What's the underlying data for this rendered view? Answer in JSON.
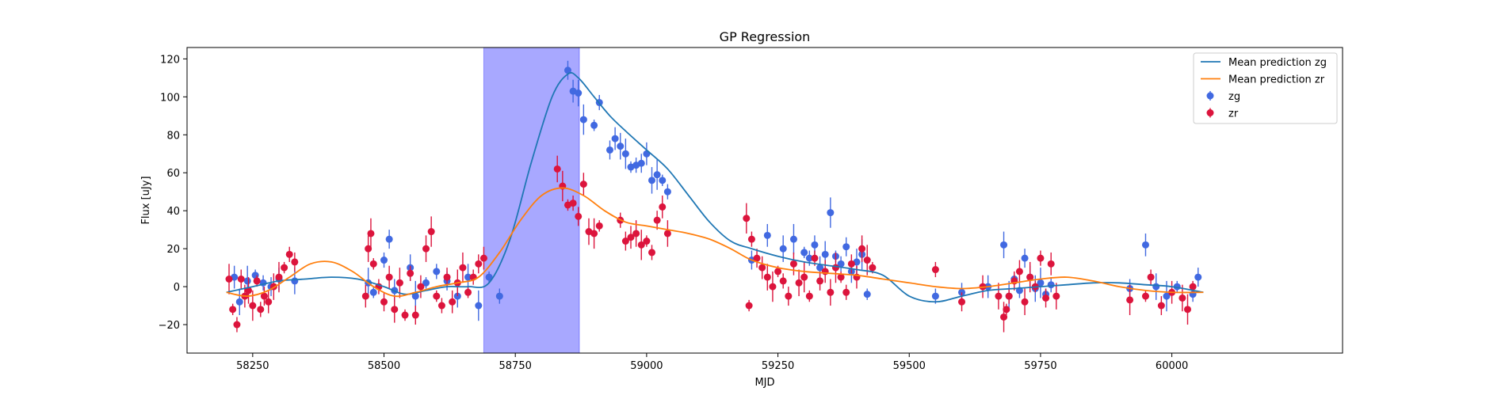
{
  "chart_data": {
    "type": "scatter",
    "title": "GP Regression",
    "xlabel": "MJD",
    "ylabel": "Flux [uJy]",
    "xlim": [
      58125,
      60325
    ],
    "ylim": [
      -35,
      126
    ],
    "xticks": [
      58250,
      58500,
      58750,
      59000,
      59250,
      59500,
      59750,
      60000
    ],
    "yticks": [
      -20,
      0,
      20,
      40,
      60,
      80,
      100,
      120
    ],
    "grid": false,
    "legend_position": "top-right",
    "colors": {
      "zg_line": "#1f77b4",
      "zr_line": "#ff7f0e",
      "zg_points": "#4169e1",
      "zr_points": "#dc143c",
      "band": "#a8a8ff"
    },
    "shaded_region": {
      "x_start": 58690,
      "x_end": 58872
    },
    "legend": [
      "Mean prediction zg",
      "Mean prediction zr",
      "zg",
      "zr"
    ],
    "lines": [
      {
        "name": "Mean prediction zg",
        "x": [
          58200,
          58250,
          58300,
          58350,
          58400,
          58450,
          58500,
          58540,
          58580,
          58620,
          58660,
          58700,
          58740,
          58780,
          58820,
          58850,
          58870,
          58900,
          58930,
          58960,
          59000,
          59040,
          59080,
          59120,
          59160,
          59200,
          59250,
          59300,
          59350,
          59400,
          59450,
          59500,
          59550,
          59600,
          59650,
          59700,
          59750,
          59800,
          59850,
          59900,
          59950,
          60000,
          60060
        ],
        "y": [
          -3,
          0,
          3,
          4,
          5,
          4,
          0,
          -4,
          -2,
          0,
          0,
          2,
          25,
          65,
          100,
          112,
          110,
          100,
          90,
          82,
          72,
          62,
          48,
          34,
          24,
          20,
          16,
          13,
          11,
          9,
          6,
          -5,
          -8,
          -5,
          -2,
          -1,
          0,
          1,
          2,
          2,
          1,
          0,
          -3
        ]
      },
      {
        "name": "Mean prediction zr",
        "x": [
          58200,
          58240,
          58280,
          58320,
          58360,
          58400,
          58440,
          58480,
          58520,
          58560,
          58600,
          58640,
          58680,
          58720,
          58760,
          58800,
          58840,
          58880,
          58920,
          58960,
          59000,
          59040,
          59080,
          59120,
          59160,
          59200,
          59250,
          59300,
          59350,
          59400,
          59450,
          59500,
          59550,
          59600,
          59650,
          59700,
          59750,
          59800,
          59850,
          59900,
          59950,
          60000,
          60060
        ],
        "y": [
          -3,
          -5,
          -2,
          5,
          12,
          13,
          8,
          0,
          -5,
          -3,
          0,
          2,
          5,
          18,
          35,
          48,
          52,
          48,
          40,
          34,
          32,
          30,
          28,
          25,
          20,
          14,
          10,
          8,
          7,
          6,
          4,
          2,
          0,
          -1,
          0,
          2,
          4,
          5,
          3,
          0,
          -2,
          -3,
          -3
        ]
      }
    ],
    "series": [
      {
        "name": "zg",
        "x": [
          58215,
          58225,
          58240,
          58255,
          58270,
          58285,
          58300,
          58330,
          58470,
          58480,
          58500,
          58510,
          58520,
          58550,
          58560,
          58580,
          58600,
          58620,
          58640,
          58660,
          58680,
          58700,
          58720,
          58850,
          58860,
          58870,
          58880,
          58900,
          58910,
          58930,
          58940,
          58950,
          58960,
          58970,
          58980,
          58990,
          59000,
          59010,
          59020,
          59030,
          59040,
          59200,
          59230,
          59260,
          59280,
          59300,
          59310,
          59320,
          59330,
          59340,
          59350,
          59360,
          59370,
          59380,
          59390,
          59400,
          59410,
          59420,
          59550,
          59600,
          59650,
          59680,
          59690,
          59700,
          59710,
          59720,
          59730,
          59740,
          59750,
          59760,
          59770,
          59920,
          59950,
          59970,
          59990,
          60010,
          60040,
          60050
        ],
        "y": [
          5,
          -8,
          3,
          6,
          2,
          0,
          4,
          3,
          2,
          -3,
          14,
          25,
          -2,
          10,
          -5,
          2,
          8,
          3,
          -5,
          5,
          -10,
          5,
          -5,
          114,
          103,
          102,
          88,
          85,
          97,
          72,
          78,
          74,
          70,
          63,
          64,
          65,
          70,
          56,
          59,
          56,
          50,
          14,
          27,
          20,
          25,
          18,
          15,
          22,
          10,
          17,
          39,
          16,
          12,
          21,
          8,
          13,
          17,
          -4,
          -5,
          -3,
          0,
          22,
          -5,
          4,
          -2,
          15,
          5,
          -1,
          2,
          -4,
          1,
          -1,
          22,
          0,
          -5,
          0,
          -4,
          5
        ]
      },
      {
        "name": "zr",
        "x": [
          58205,
          58212,
          58220,
          58228,
          58235,
          58242,
          58250,
          58258,
          58265,
          58272,
          58280,
          58290,
          58300,
          58310,
          58320,
          58330,
          58465,
          58470,
          58475,
          58480,
          58490,
          58500,
          58510,
          58520,
          58530,
          58540,
          58550,
          58560,
          58570,
          58580,
          58590,
          58600,
          58610,
          58620,
          58630,
          58640,
          58650,
          58660,
          58670,
          58680,
          58690,
          58830,
          58840,
          58850,
          58860,
          58870,
          58880,
          58890,
          58900,
          58910,
          58950,
          58960,
          58970,
          58980,
          58990,
          59000,
          59010,
          59020,
          59030,
          59040,
          59190,
          59195,
          59200,
          59210,
          59220,
          59230,
          59240,
          59250,
          59260,
          59270,
          59280,
          59290,
          59300,
          59310,
          59320,
          59330,
          59340,
          59350,
          59360,
          59370,
          59380,
          59390,
          59400,
          59410,
          59420,
          59430,
          59550,
          59600,
          59640,
          59670,
          59680,
          59685,
          59690,
          59700,
          59710,
          59720,
          59730,
          59740,
          59750,
          59760,
          59770,
          59780,
          59920,
          59950,
          59960,
          59980,
          60000,
          60020,
          60030,
          60040
        ],
        "y": [
          4,
          -12,
          -20,
          4,
          -5,
          -2,
          -10,
          3,
          -12,
          -5,
          -8,
          0,
          5,
          10,
          17,
          13,
          -5,
          20,
          28,
          12,
          0,
          -8,
          5,
          -12,
          2,
          -15,
          7,
          -15,
          0,
          20,
          29,
          -5,
          -10,
          5,
          -8,
          2,
          10,
          -3,
          5,
          12,
          15,
          62,
          53,
          43,
          44,
          37,
          54,
          29,
          28,
          32,
          35,
          24,
          26,
          28,
          22,
          24,
          18,
          35,
          42,
          28,
          36,
          -10,
          25,
          15,
          10,
          5,
          0,
          8,
          3,
          -5,
          12,
          2,
          5,
          -5,
          15,
          3,
          8,
          -3,
          10,
          5,
          -3,
          12,
          5,
          20,
          14,
          10,
          9,
          -8,
          0,
          -5,
          -16,
          -12,
          -5,
          3,
          8,
          -8,
          5,
          0,
          15,
          -6,
          12,
          -5,
          -7,
          -5,
          5,
          -10,
          -3,
          -6,
          -12,
          0
        ]
      }
    ]
  }
}
